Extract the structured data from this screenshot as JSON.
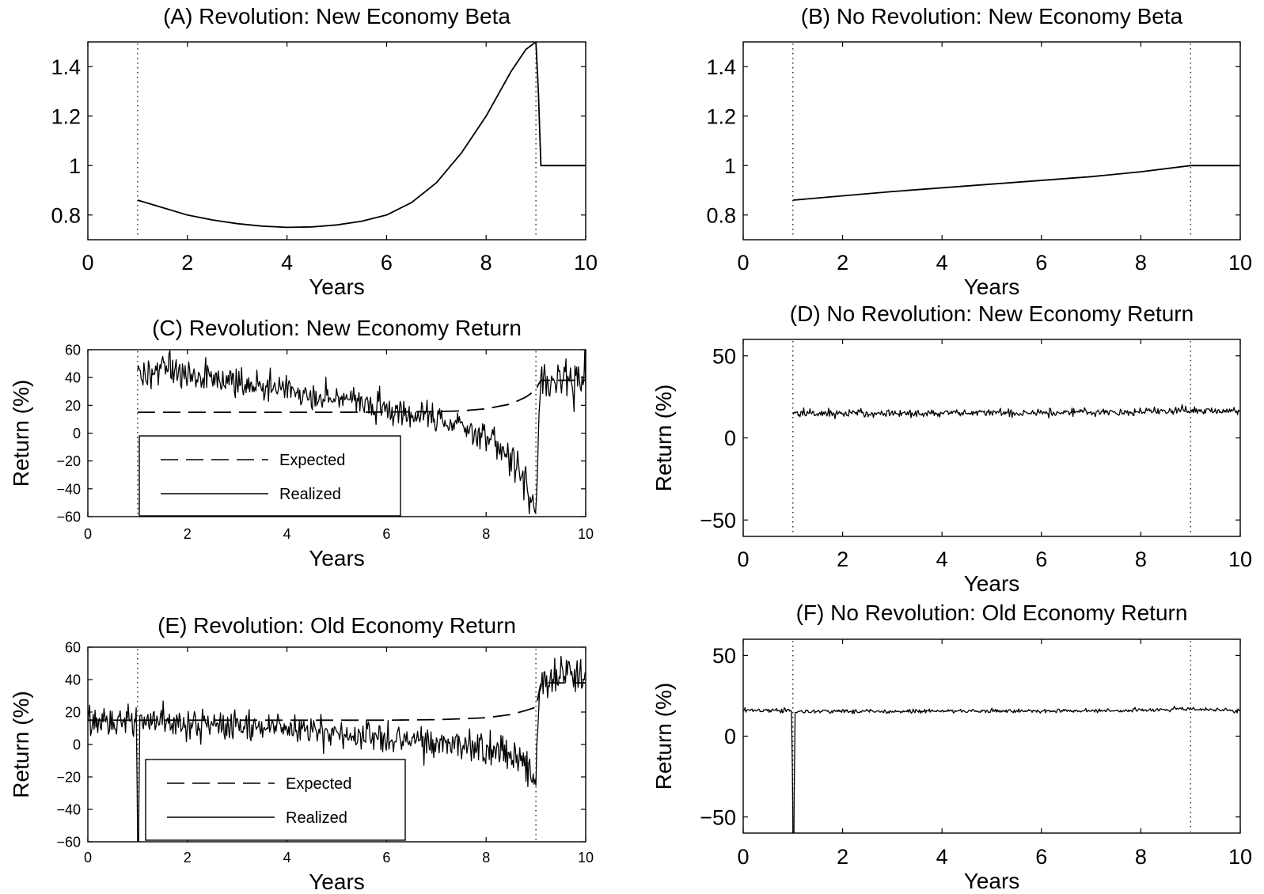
{
  "chart_data": [
    {
      "panel": "A",
      "type": "line",
      "title": "(A) Revolution: New Economy Beta",
      "xlabel": "Years",
      "ylabel": "",
      "xlim": [
        0,
        10
      ],
      "ylim": [
        0.7,
        1.5
      ],
      "xticks": [
        0,
        2,
        4,
        6,
        8,
        10
      ],
      "xtick_labels": [
        "0",
        "2",
        "4",
        "6",
        "8",
        "10"
      ],
      "yticks": [
        0.8,
        1,
        1.2,
        1.4
      ],
      "ytick_labels": [
        "0.8",
        "1",
        "1.2",
        "1.4"
      ],
      "vlines": [
        1,
        9
      ],
      "series": [
        {
          "style": "solid",
          "x": [
            1,
            1.5,
            2,
            2.5,
            3,
            3.5,
            4,
            4.5,
            5,
            5.5,
            6,
            6.5,
            7,
            7.5,
            8,
            8.5,
            8.8,
            9,
            9.05,
            9.1,
            10
          ],
          "y": [
            0.86,
            0.83,
            0.8,
            0.78,
            0.765,
            0.755,
            0.75,
            0.752,
            0.76,
            0.775,
            0.8,
            0.85,
            0.93,
            1.05,
            1.2,
            1.38,
            1.47,
            1.5,
            1.3,
            1.0,
            1.0
          ]
        }
      ]
    },
    {
      "panel": "B",
      "type": "line",
      "title": "(B) No Revolution: New Economy Beta",
      "xlabel": "Years",
      "ylabel": "",
      "xlim": [
        0,
        10
      ],
      "ylim": [
        0.7,
        1.5
      ],
      "xticks": [
        0,
        2,
        4,
        6,
        8,
        10
      ],
      "xtick_labels": [
        "0",
        "2",
        "4",
        "6",
        "8",
        "10"
      ],
      "yticks": [
        0.8,
        1,
        1.2,
        1.4
      ],
      "ytick_labels": [
        "0.8",
        "1",
        "1.2",
        "1.4"
      ],
      "vlines": [
        1,
        9
      ],
      "series": [
        {
          "style": "solid",
          "x": [
            1,
            3,
            5,
            7,
            8,
            9,
            10
          ],
          "y": [
            0.86,
            0.895,
            0.925,
            0.955,
            0.975,
            1.0,
            1.0
          ]
        }
      ]
    },
    {
      "panel": "C",
      "type": "line",
      "title": "(C) Revolution: New Economy Return",
      "xlabel": "Years",
      "ylabel": "Return (%)",
      "xlim": [
        0,
        10
      ],
      "ylim": [
        -60,
        60
      ],
      "xticks": [
        0,
        2,
        4,
        6,
        8,
        10
      ],
      "xtick_labels": [
        "0",
        "2",
        "4",
        "6",
        "8",
        "10"
      ],
      "yticks": [
        -60,
        -40,
        -20,
        0,
        20,
        40,
        60
      ],
      "ytick_labels": [
        "−60",
        "−40",
        "−20",
        "0",
        "20",
        "40",
        "60"
      ],
      "vlines": [
        1,
        9
      ],
      "legend": [
        "Expected",
        "Realized"
      ],
      "legend_position": "lower-left",
      "series": [
        {
          "name": "Expected",
          "style": "dashed",
          "x": [
            1,
            2,
            3,
            4,
            5,
            6,
            7,
            7.5,
            8,
            8.5,
            8.8,
            9,
            9.05,
            9.1,
            10
          ],
          "y": [
            15,
            15,
            15,
            15,
            15,
            15.2,
            15.5,
            16,
            17.5,
            21,
            26,
            31,
            35,
            38,
            38
          ]
        },
        {
          "name": "Realized",
          "style": "solid",
          "noisy": true,
          "x": [
            1,
            1.5,
            2,
            3,
            4,
            5,
            6,
            7,
            7.5,
            8,
            8.3,
            8.6,
            8.8,
            8.9,
            9,
            9.05,
            9.1,
            9.5,
            10
          ],
          "y": [
            42,
            45,
            42,
            36,
            30,
            25,
            18,
            10,
            5,
            -4,
            -12,
            -22,
            -35,
            -48,
            -60,
            0,
            38,
            40,
            40
          ],
          "noise_sd": [
            5,
            6,
            6,
            5,
            5,
            5,
            5,
            5,
            5,
            6,
            6,
            7,
            7,
            8,
            4,
            4,
            7,
            8,
            8
          ]
        }
      ]
    },
    {
      "panel": "D",
      "type": "line",
      "title": "(D) No Revolution: New Economy Return",
      "xlabel": "Years",
      "ylabel": "Return (%)",
      "xlim": [
        0,
        10
      ],
      "ylim": [
        -60,
        60
      ],
      "xticks": [
        0,
        2,
        4,
        6,
        8,
        10
      ],
      "xtick_labels": [
        "0",
        "2",
        "4",
        "6",
        "8",
        "10"
      ],
      "yticks": [
        -50,
        0,
        50
      ],
      "ytick_labels": [
        "−50",
        "0",
        "50"
      ],
      "vlines": [
        1,
        9
      ],
      "series": [
        {
          "style": "solid",
          "noisy": true,
          "x": [
            1,
            2,
            4,
            6,
            8,
            9,
            10
          ],
          "y": [
            15,
            15,
            15,
            15.5,
            16,
            17,
            16
          ],
          "noise_sd": [
            1.3,
            1.3,
            1.2,
            1.2,
            1.2,
            1.3,
            1.2
          ]
        }
      ]
    },
    {
      "panel": "E",
      "type": "line",
      "title": "(E) Revolution: Old Economy Return",
      "xlabel": "Years",
      "ylabel": "Return (%)",
      "xlim": [
        0,
        10
      ],
      "ylim": [
        -60,
        60
      ],
      "xticks": [
        0,
        2,
        4,
        6,
        8,
        10
      ],
      "xtick_labels": [
        "0",
        "2",
        "4",
        "6",
        "8",
        "10"
      ],
      "yticks": [
        -60,
        -40,
        -20,
        0,
        20,
        40,
        60
      ],
      "ytick_labels": [
        "−60",
        "−40",
        "−20",
        "0",
        "20",
        "40",
        "60"
      ],
      "vlines": [
        1,
        9
      ],
      "legend": [
        "Expected",
        "Realized"
      ],
      "legend_position": "lower-left",
      "series": [
        {
          "name": "Expected",
          "style": "dashed",
          "x": [
            0,
            1,
            2,
            3,
            4,
            5,
            6,
            7,
            7.5,
            8,
            8.5,
            8.8,
            9,
            9.05,
            9.1,
            10
          ],
          "y": [
            15,
            15,
            15,
            15,
            15,
            15,
            15,
            15.3,
            15.8,
            16.5,
            18.5,
            21,
            23,
            30,
            38,
            38
          ]
        },
        {
          "name": "Realized",
          "style": "solid",
          "noisy": true,
          "x": [
            0,
            0.98,
            1.0,
            1.02,
            1.04,
            2,
            3,
            4,
            5,
            6,
            7,
            7.5,
            8,
            8.5,
            8.8,
            9,
            9.05,
            9.1,
            9.5,
            10
          ],
          "y": [
            16,
            15,
            -60,
            -60,
            14,
            13,
            11,
            9,
            7,
            4,
            2,
            0,
            -2,
            -6,
            -12,
            -22,
            20,
            40,
            42,
            40
          ],
          "noise_sd": [
            5,
            5,
            0,
            0,
            5,
            5,
            5,
            5,
            5,
            5,
            5,
            5,
            5,
            5,
            5,
            4,
            4,
            7,
            7,
            7
          ]
        }
      ]
    },
    {
      "panel": "F",
      "type": "line",
      "title": "(F) No Revolution: Old Economy Return",
      "xlabel": "Years",
      "ylabel": "Return (%)",
      "xlim": [
        0,
        10
      ],
      "ylim": [
        -60,
        60
      ],
      "xticks": [
        0,
        2,
        4,
        6,
        8,
        10
      ],
      "xtick_labels": [
        "0",
        "2",
        "4",
        "6",
        "8",
        "10"
      ],
      "yticks": [
        -50,
        0,
        50
      ],
      "ytick_labels": [
        "−50",
        "0",
        "50"
      ],
      "vlines": [
        1,
        9
      ],
      "series": [
        {
          "style": "solid",
          "noisy": true,
          "x": [
            0,
            0.98,
            1.0,
            1.02,
            1.04,
            2,
            4,
            6,
            8,
            9,
            10
          ],
          "y": [
            16,
            16,
            -60,
            -60,
            15,
            15.5,
            15.5,
            15.5,
            16,
            17,
            15.5
          ],
          "noise_sd": [
            0.7,
            0.7,
            0,
            0,
            0.7,
            0.7,
            0.6,
            0.6,
            0.6,
            0.7,
            0.6
          ]
        }
      ]
    }
  ]
}
